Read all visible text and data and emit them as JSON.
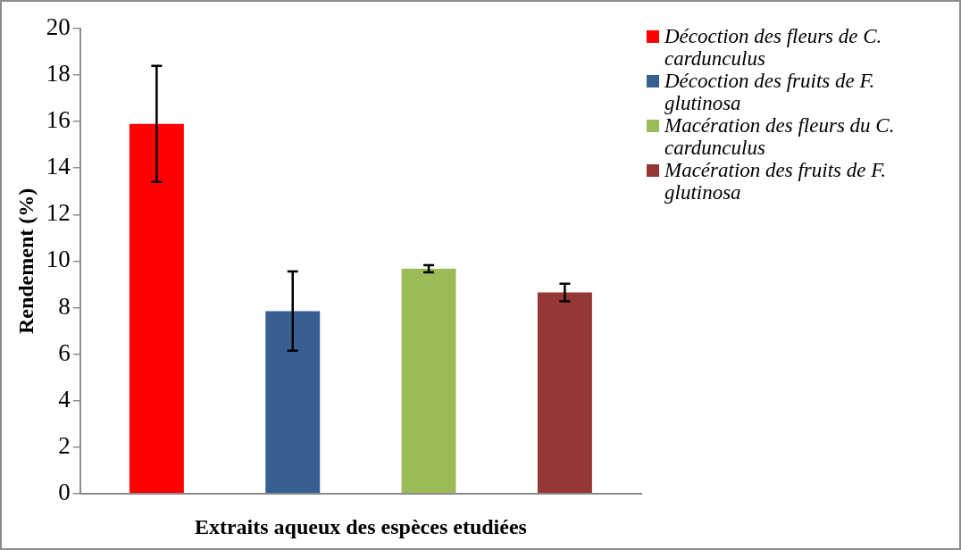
{
  "chart_data": {
    "type": "bar",
    "xlabel": "Extraits aqueux des espèces etudiées",
    "ylabel": "Rendement (%)",
    "categories": [
      null
    ],
    "series": [
      {
        "name": "Décoction des fleurs de C. cardunculus",
        "color": "#ff0000",
        "values": [
          15.9
        ],
        "errors": [
          2.5
        ]
      },
      {
        "name": "Décoction des fruits de F. glutinosa",
        "color": "#375f91",
        "values": [
          7.85
        ],
        "errors": [
          1.7
        ]
      },
      {
        "name": "Macération des fleurs du C. cardunculus",
        "color": "#9bbb59",
        "values": [
          9.67
        ],
        "errors": [
          0.15
        ]
      },
      {
        "name": "Macération des fruits de F. glutinosa",
        "color": "#953735",
        "values": [
          8.65
        ],
        "errors": [
          0.38
        ]
      }
    ],
    "ylim": [
      0,
      20
    ],
    "yticks": [
      0,
      2,
      4,
      6,
      8,
      10,
      12,
      14,
      16,
      18,
      20
    ],
    "grid": false,
    "legend": "right"
  }
}
